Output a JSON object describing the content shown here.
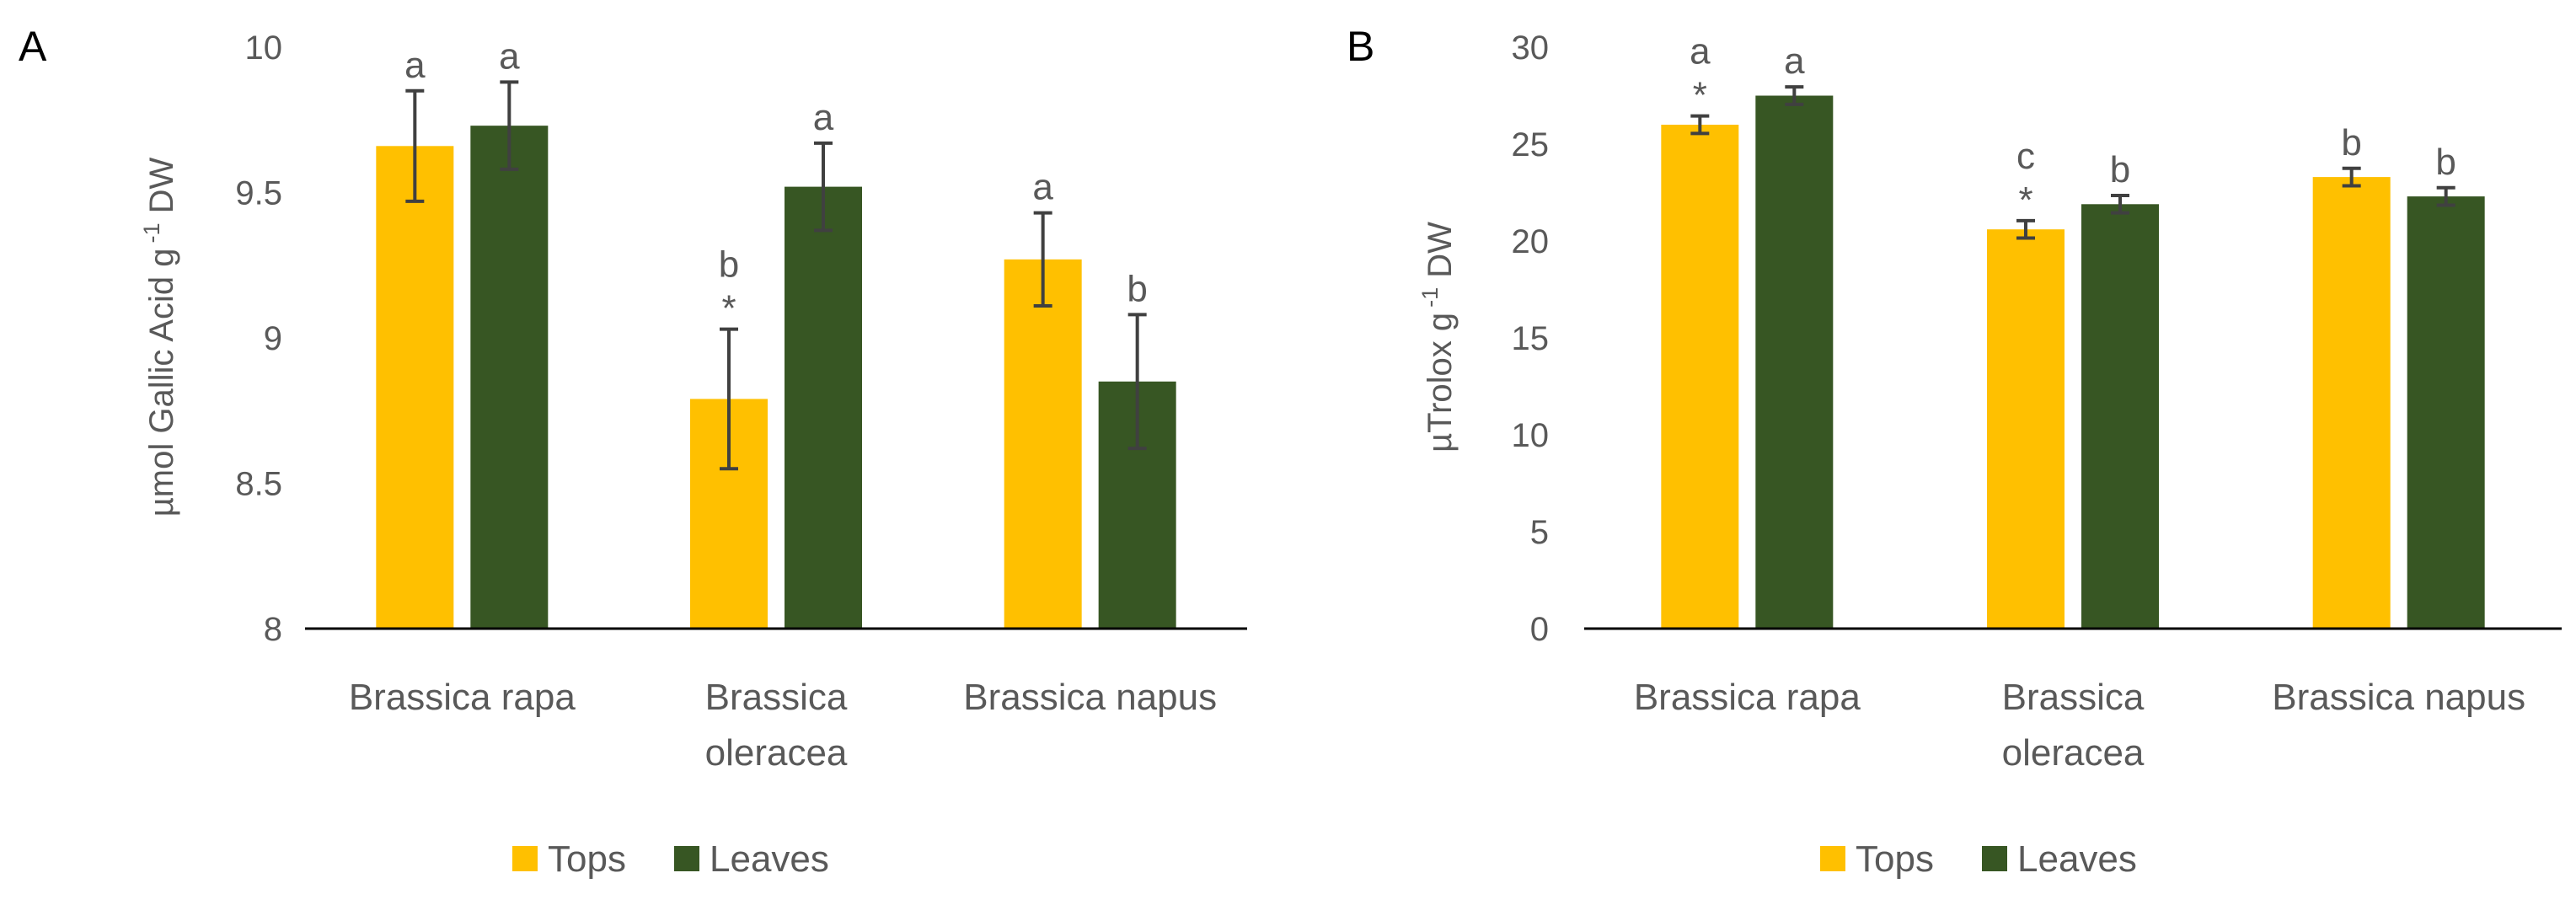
{
  "chart_data": [
    {
      "type": "bar",
      "panel_label": "A",
      "ylabel_main": "µmol Gallic Acid g",
      "ylabel_sup": "-1",
      "ylabel_tail": " DW",
      "ylim": [
        8,
        10
      ],
      "yticks": [
        "8",
        "8.5",
        "9",
        "9.5",
        "10"
      ],
      "ytick_values": [
        8,
        8.5,
        9,
        9.5,
        10
      ],
      "categories": [
        [
          "Brassica rapa"
        ],
        [
          "Brassica",
          "oleracea"
        ],
        [
          "Brassica napus"
        ]
      ],
      "series": [
        {
          "name": "Tops",
          "color": "#FFC000",
          "values": [
            9.66,
            8.79,
            9.27
          ],
          "errors": [
            0.19,
            0.24,
            0.16
          ],
          "letters": [
            "a",
            "b",
            "a"
          ],
          "stars": [
            "",
            "*",
            ""
          ]
        },
        {
          "name": "Leaves",
          "color": "#375623",
          "values": [
            9.73,
            9.52,
            8.85
          ],
          "errors": [
            0.15,
            0.15,
            0.23
          ],
          "letters": [
            "a",
            "a",
            "b"
          ],
          "stars": [
            "",
            "",
            ""
          ]
        }
      ],
      "legend": [
        "Tops",
        "Leaves"
      ]
    },
    {
      "type": "bar",
      "panel_label": "B",
      "ylabel_main": "µTrolox g",
      "ylabel_sup": "-1",
      "ylabel_tail": " DW",
      "ylim": [
        0,
        30
      ],
      "yticks": [
        "0",
        "5",
        "10",
        "15",
        "20",
        "25",
        "30"
      ],
      "ytick_values": [
        0,
        5,
        10,
        15,
        20,
        25,
        30
      ],
      "categories": [
        [
          "Brassica rapa"
        ],
        [
          "Brassica",
          "oleracea"
        ],
        [
          "Brassica napus"
        ]
      ],
      "series": [
        {
          "name": "Tops",
          "color": "#FFC000",
          "values": [
            26.0,
            20.6,
            23.3
          ],
          "errors": [
            0.45,
            0.45,
            0.45
          ],
          "letters": [
            "a",
            "c",
            "b"
          ],
          "stars": [
            "*",
            "*",
            ""
          ]
        },
        {
          "name": "Leaves",
          "color": "#375623",
          "values": [
            27.5,
            21.9,
            22.3
          ],
          "errors": [
            0.45,
            0.45,
            0.45
          ],
          "letters": [
            "a",
            "b",
            "b"
          ],
          "stars": [
            "",
            "",
            ""
          ]
        }
      ],
      "legend": [
        "Tops",
        "Leaves"
      ]
    }
  ]
}
